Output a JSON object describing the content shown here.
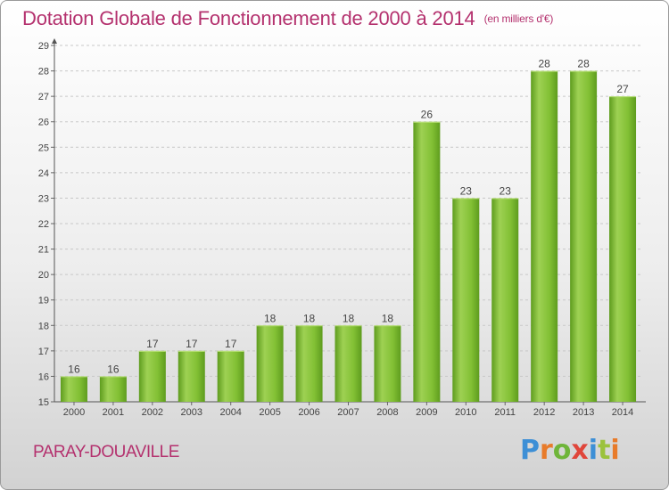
{
  "title": "Dotation Globale de Fonctionnement de 2000 à 2014",
  "unit": "(en milliers d'€)",
  "city": "PARAY-DOUAVILLE",
  "logo": {
    "letters": [
      "P",
      "r",
      "o",
      "x",
      "i",
      "t",
      "i"
    ],
    "colors": [
      "#3d8fd6",
      "#e87b2a",
      "#6fb53a",
      "#e0463b",
      "#3d8fd6",
      "#9bc23c",
      "#e87b2a"
    ]
  },
  "colors": {
    "bar": "#7cbc2f",
    "bar_light": "#9ed153",
    "bar_dark": "#5e9c1e",
    "title": "#b4316e"
  },
  "chart_data": {
    "type": "bar",
    "categories": [
      "2000",
      "2001",
      "2002",
      "2003",
      "2004",
      "2005",
      "2006",
      "2007",
      "2008",
      "2009",
      "2010",
      "2011",
      "2012",
      "2013",
      "2014"
    ],
    "values": [
      16,
      16,
      17,
      17,
      17,
      18,
      18,
      18,
      18,
      26,
      23,
      23,
      28,
      28,
      27
    ],
    "ylim": [
      15,
      29
    ],
    "yticks": [
      15,
      16,
      17,
      18,
      19,
      20,
      21,
      22,
      23,
      24,
      25,
      26,
      27,
      28,
      29
    ],
    "grid": true
  }
}
